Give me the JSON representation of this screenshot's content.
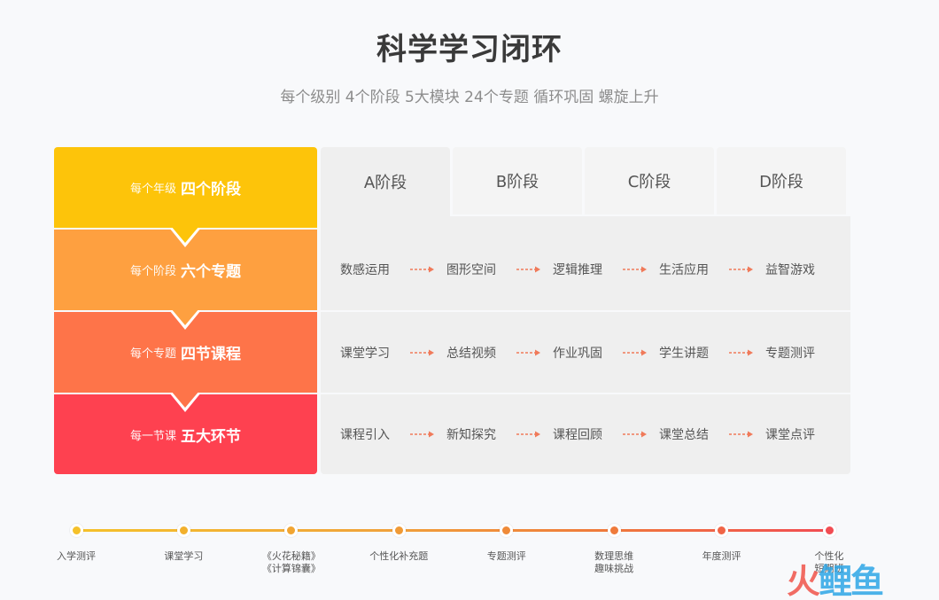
{
  "header": {
    "title": "科学学习闭环",
    "subtitle": "每个级别 4个阶段 5大模块 24个专题 循环巩固 螺旋上升"
  },
  "left_column": [
    {
      "small": "每个年级",
      "big": "四个阶段",
      "color": "#fdc40a"
    },
    {
      "small": "每个阶段",
      "big": "六个专题",
      "color": "#fea040"
    },
    {
      "small": "每个专题",
      "big": "四节课程",
      "color": "#fe7449"
    },
    {
      "small": "每一节课",
      "big": "五大环节",
      "color": "#fe4150"
    }
  ],
  "tabs": [
    {
      "label": "A阶段",
      "active": true
    },
    {
      "label": "B阶段",
      "active": false
    },
    {
      "label": "C阶段",
      "active": false
    },
    {
      "label": "D阶段",
      "active": false
    }
  ],
  "rows": [
    {
      "items": [
        "数感运用",
        "图形空间",
        "逻辑推理",
        "生活应用",
        "益智游戏"
      ]
    },
    {
      "items": [
        "课堂学习",
        "总结视频",
        "作业巩固",
        "学生讲题",
        "专题测评"
      ]
    },
    {
      "items": [
        "课程引入",
        "新知探究",
        "课程回顾",
        "课堂总结",
        "课堂点评"
      ]
    }
  ],
  "arrow_color": "#f07a5a",
  "timeline": [
    {
      "label": "入学测评",
      "color": "#f5c12a"
    },
    {
      "label": "课堂学习",
      "color": "#f2b02c"
    },
    {
      "label": "《火花秘籍》\n《计算锦囊》",
      "color": "#f1a532"
    },
    {
      "label": "个性化补充题",
      "color": "#f09a36"
    },
    {
      "label": "专题测评",
      "color": "#ef8a38"
    },
    {
      "label": "数理思维\n趣味挑战",
      "color": "#ef7a3b"
    },
    {
      "label": "年度测评",
      "color": "#f06446"
    },
    {
      "label": "个性化\n短期班",
      "color": "#f14c52"
    }
  ],
  "watermark": {
    "part1": "火",
    "part2": "鲤鱼"
  }
}
